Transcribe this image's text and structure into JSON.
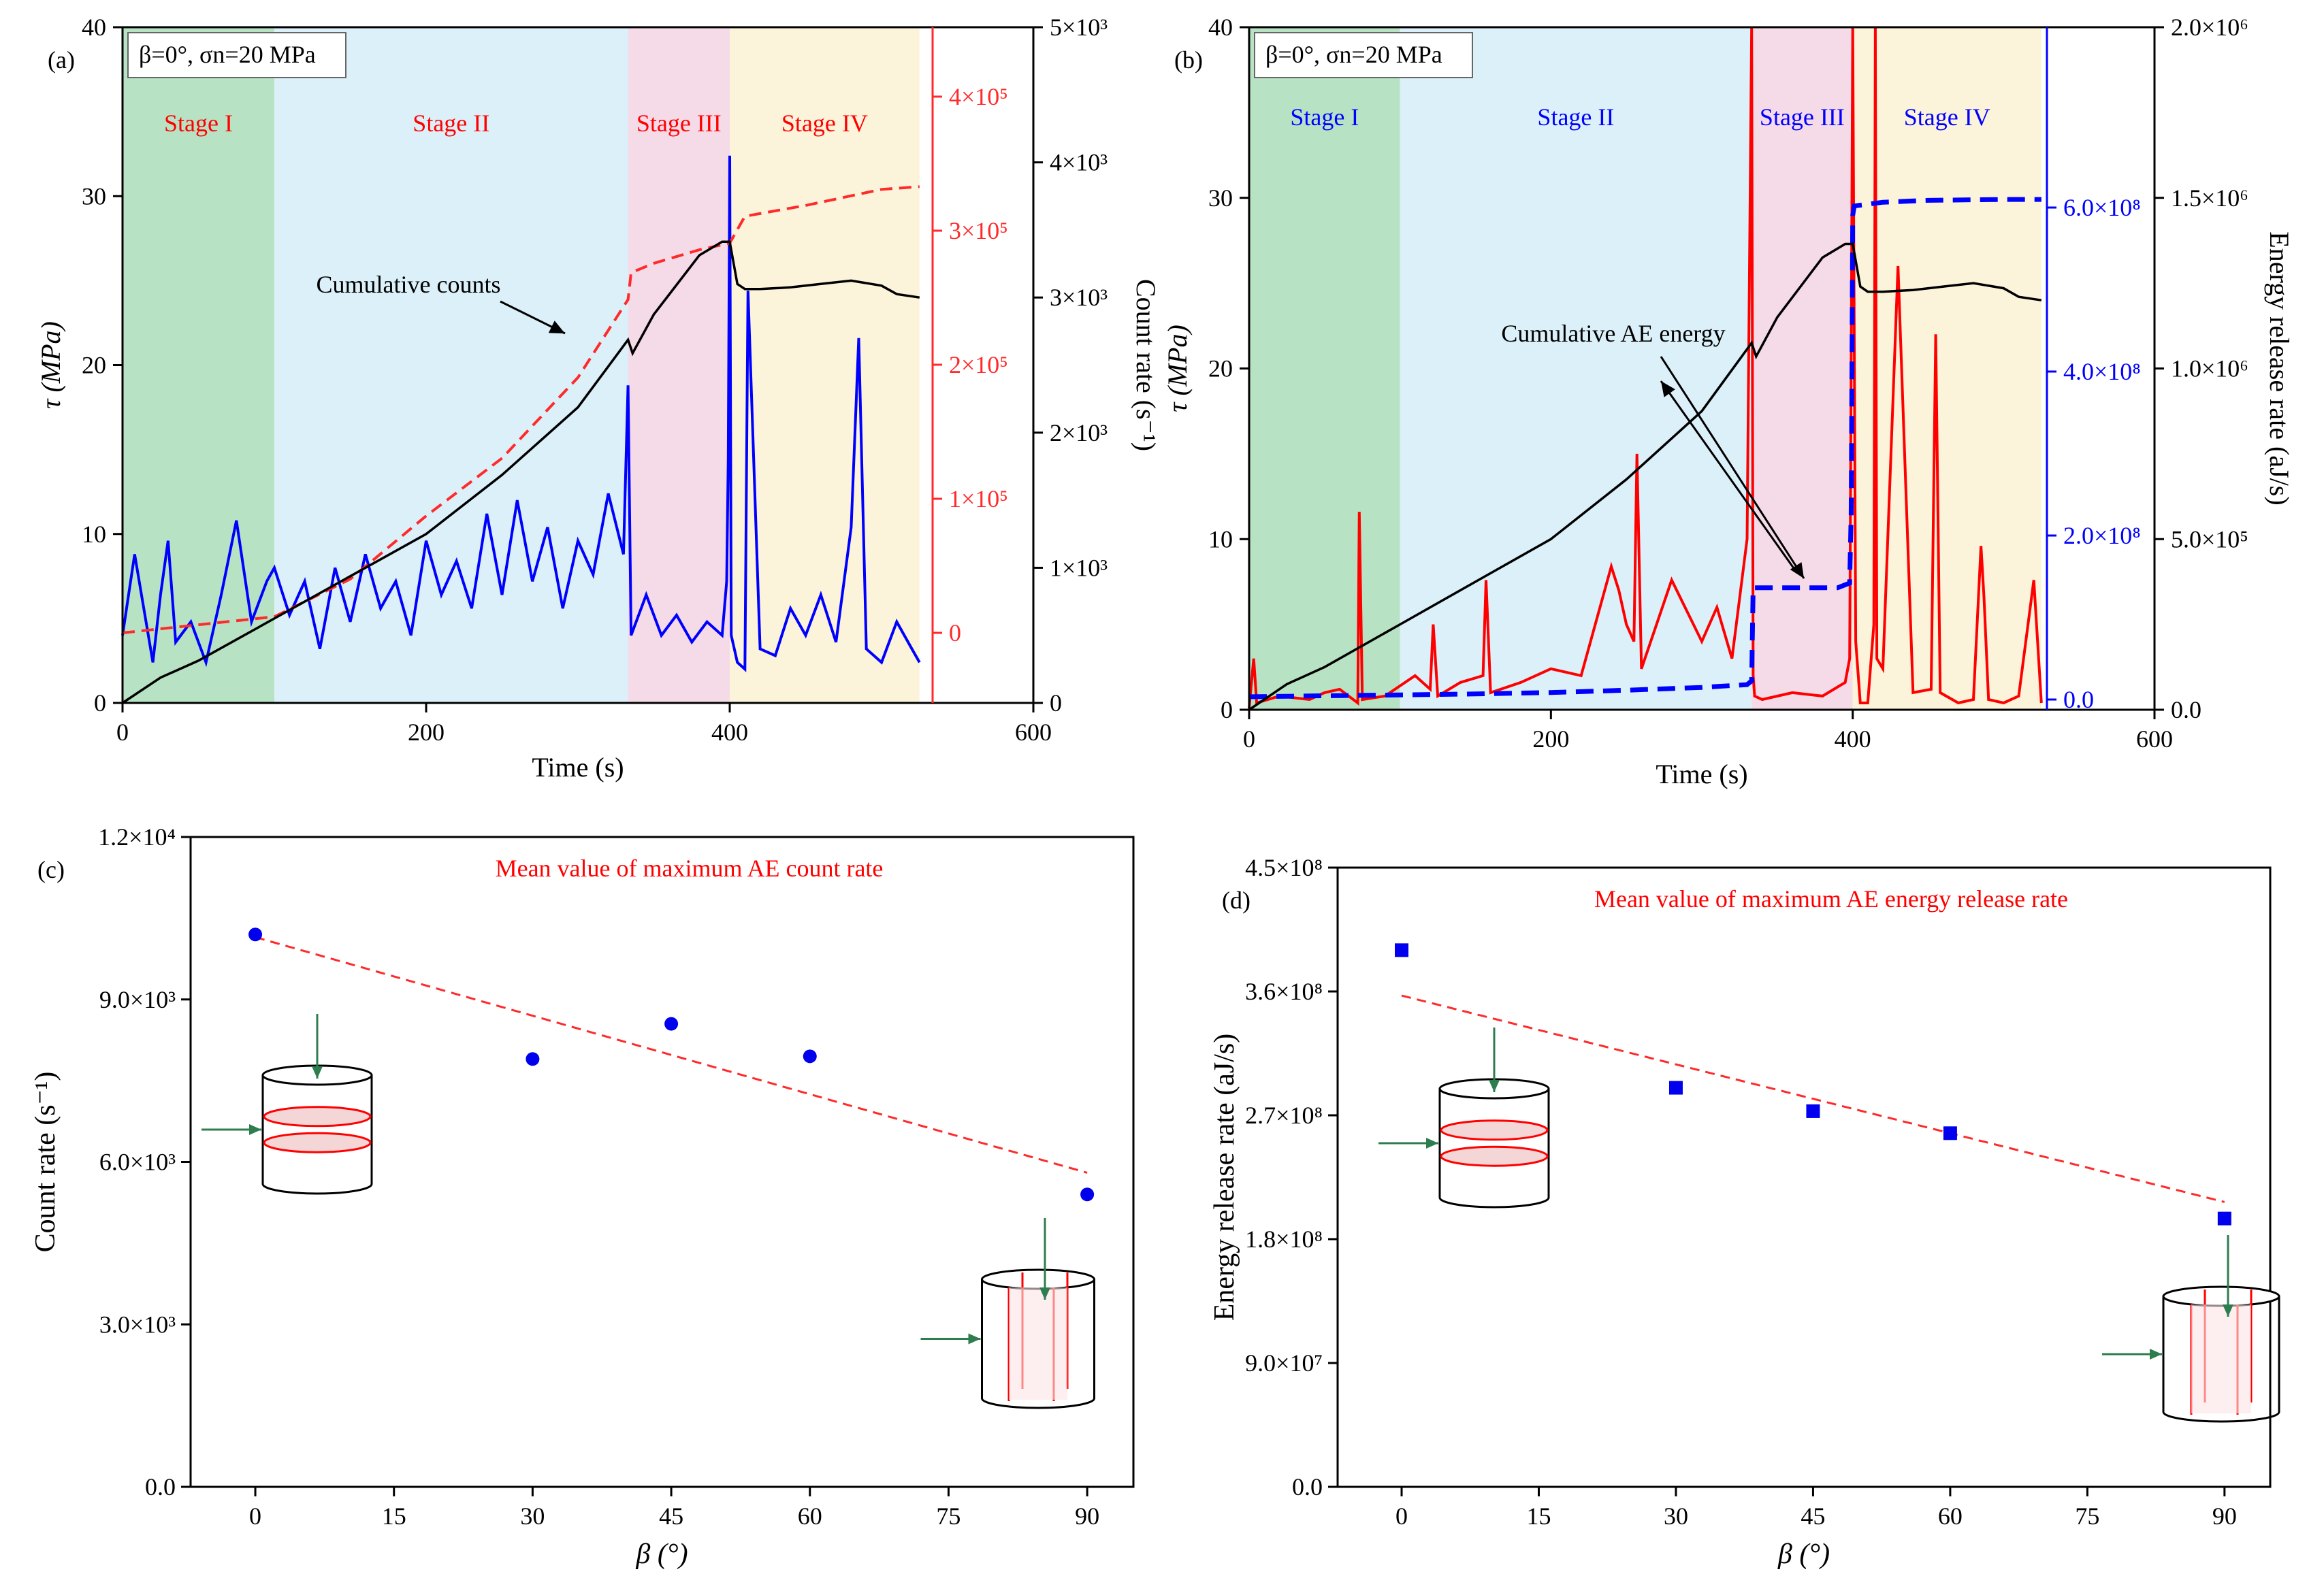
{
  "colors": {
    "stage1": "#b7e3c4",
    "stage2": "#dcf0f9",
    "stage3": "#f5dbe8",
    "stage4": "#fbf3da",
    "black": "#000000",
    "red": "#ff0000",
    "blue": "#0000ff",
    "dashred": "#ff2a2a",
    "marker_blue": "#0000ee",
    "arrow_green": "#2e7d4f"
  },
  "chart_data": [
    {
      "id": "a",
      "type": "line",
      "panel_label": "(a)",
      "condition": "β=0°, σn=20 MPa",
      "xlabel": "Time (s)",
      "ylabel": "τ (MPa)",
      "y2label": "Cumulative counts",
      "y3label": "Count rate (s⁻¹)",
      "xlim": [
        0,
        600
      ],
      "ylim": [
        0,
        40
      ],
      "xticks": [
        "0",
        "200",
        "400",
        "600"
      ],
      "yticks": [
        "0",
        "10",
        "20",
        "30",
        "40"
      ],
      "y2_ticks": [
        "0",
        "1×10⁵",
        "2×10⁵",
        "3×10⁵",
        "4×10⁵"
      ],
      "y3_ticks": [
        "0",
        "1×10³",
        "2×10³",
        "3×10³",
        "4×10³",
        "5×10³"
      ],
      "stages": [
        {
          "label": "Stage I",
          "x0": 0,
          "x1": 100
        },
        {
          "label": "Stage II",
          "x0": 100,
          "x1": 333
        },
        {
          "label": "Stage III",
          "x0": 333,
          "x1": 400
        },
        {
          "label": "Stage IV",
          "x0": 400,
          "x1": 525
        }
      ],
      "annotation": "Cumulative counts",
      "series": [
        {
          "name": "τ (MPa)",
          "x": [
            0,
            25,
            50,
            100,
            150,
            200,
            250,
            300,
            333,
            336,
            350,
            380,
            395,
            400,
            405,
            410,
            420,
            440,
            460,
            480,
            500,
            510,
            525
          ],
          "y": [
            0,
            1.5,
            2.5,
            5,
            7.5,
            10,
            13.5,
            17.5,
            21.5,
            20.7,
            23,
            26.5,
            27.3,
            27.3,
            24.8,
            24.5,
            24.5,
            24.6,
            24.8,
            25,
            24.7,
            24.2,
            24
          ]
        },
        {
          "name": "Cumulative counts",
          "x": [
            0,
            25,
            50,
            75,
            100,
            150,
            200,
            250,
            300,
            333,
            335,
            350,
            380,
            400,
            410,
            450,
            500,
            525
          ],
          "y": [
            0,
            3000,
            6000,
            9000,
            12000,
            40000,
            87000,
            130000,
            190000,
            248000,
            268000,
            275000,
            285000,
            290000,
            310000,
            318000,
            330000,
            332000
          ]
        },
        {
          "name": "Count rate",
          "x": [
            0,
            8,
            20,
            25,
            30,
            35,
            45,
            55,
            65,
            75,
            85,
            95,
            100,
            110,
            120,
            130,
            140,
            150,
            160,
            170,
            180,
            190,
            200,
            210,
            220,
            230,
            240,
            250,
            260,
            270,
            280,
            290,
            300,
            310,
            320,
            330,
            333,
            335,
            345,
            355,
            365,
            375,
            385,
            395,
            398,
            399,
            400,
            401,
            405,
            410,
            412,
            420,
            430,
            440,
            450,
            460,
            470,
            480,
            485,
            490,
            500,
            510,
            520,
            525
          ],
          "y": [
            500,
            1100,
            300,
            800,
            1200,
            450,
            600,
            300,
            800,
            1350,
            600,
            900,
            1000,
            650,
            900,
            400,
            1000,
            600,
            1100,
            700,
            900,
            500,
            1200,
            800,
            1050,
            700,
            1400,
            800,
            1500,
            900,
            1300,
            700,
            1200,
            950,
            1550,
            1100,
            2350,
            500,
            800,
            500,
            650,
            450,
            600,
            500,
            900,
            1800,
            4050,
            500,
            300,
            250,
            3050,
            400,
            350,
            700,
            500,
            800,
            450,
            1300,
            2700,
            400,
            300,
            600,
            400,
            300
          ]
        }
      ]
    },
    {
      "id": "b",
      "type": "line",
      "panel_label": "(b)",
      "condition": "β=0°, σn=20 MPa",
      "xlabel": "Time (s)",
      "ylabel": "τ (MPa)",
      "y2label": "Cumulative AE energy",
      "y3label": "Energy release rate (aJ/s)",
      "xlim": [
        0,
        600
      ],
      "ylim": [
        0,
        40
      ],
      "xticks": [
        "0",
        "200",
        "400",
        "600"
      ],
      "yticks": [
        "0",
        "10",
        "20",
        "30",
        "40"
      ],
      "y2_ticks": [
        "0.0",
        "2.0×10⁸",
        "4.0×10⁸",
        "6.0×10⁸"
      ],
      "y3_ticks": [
        "0.0",
        "5.0×10⁵",
        "1.0×10⁶",
        "1.5×10⁶",
        "2.0×10⁶"
      ],
      "stages": [
        {
          "label": "Stage I",
          "x0": 0,
          "x1": 100
        },
        {
          "label": "Stage II",
          "x0": 100,
          "x1": 333
        },
        {
          "label": "Stage III",
          "x0": 333,
          "x1": 400
        },
        {
          "label": "Stage IV",
          "x0": 400,
          "x1": 525
        }
      ],
      "annotation": "Cumulative AE energy",
      "series": [
        {
          "name": "τ (MPa)",
          "x": [
            0,
            25,
            50,
            100,
            150,
            200,
            250,
            300,
            333,
            336,
            350,
            380,
            395,
            400,
            405,
            410,
            420,
            440,
            460,
            480,
            500,
            510,
            525
          ],
          "y": [
            0,
            1.5,
            2.5,
            5,
            7.5,
            10,
            13.5,
            17.5,
            21.5,
            20.7,
            23,
            26.5,
            27.3,
            27.3,
            24.8,
            24.5,
            24.5,
            24.6,
            24.8,
            25,
            24.7,
            24.2,
            24
          ]
        },
        {
          "name": "Cumulative AE energy",
          "x": [
            0,
            50,
            100,
            150,
            200,
            250,
            300,
            330,
            333,
            334,
            380,
            390,
            398,
            399,
            400,
            401,
            420,
            450,
            500,
            525
          ],
          "y": [
            3000000,
            4000000,
            5000000,
            6000000,
            7500000,
            10000000,
            13000000,
            16000000,
            20000000,
            120000000,
            120000000,
            120000000,
            125000000,
            200000000,
            520000000,
            530000000,
            534000000,
            536000000,
            537000000,
            537000000
          ]
        },
        {
          "name": "Energy release rate",
          "x": [
            0,
            3,
            5,
            20,
            40,
            50,
            60,
            72,
            73,
            75,
            90,
            110,
            120,
            122,
            125,
            140,
            155,
            157,
            160,
            180,
            200,
            220,
            240,
            245,
            250,
            255,
            257,
            260,
            280,
            300,
            310,
            320,
            330,
            333,
            334,
            335,
            340,
            360,
            380,
            395,
            398,
            399,
            400,
            402,
            405,
            410,
            414,
            415,
            416,
            420,
            430,
            440,
            452,
            455,
            458,
            470,
            480,
            485,
            487,
            490,
            500,
            510,
            520,
            525
          ],
          "y": [
            5000,
            150000,
            20000,
            40000,
            30000,
            50000,
            60000,
            20000,
            580000,
            30000,
            40000,
            100000,
            60000,
            250000,
            40000,
            80000,
            100000,
            380000,
            50000,
            80000,
            120000,
            100000,
            420000,
            350000,
            250000,
            200000,
            750000,
            120000,
            380000,
            200000,
            300000,
            150000,
            500000,
            2000000,
            100000,
            40000,
            30000,
            50000,
            40000,
            80000,
            150000,
            1000000,
            2000000,
            200000,
            20000,
            20000,
            250000,
            2000000,
            150000,
            120000,
            1300000,
            50000,
            60000,
            1100000,
            50000,
            20000,
            30000,
            480000,
            330000,
            30000,
            20000,
            40000,
            380000,
            20000
          ]
        }
      ]
    },
    {
      "id": "c",
      "type": "scatter",
      "panel_label": "(c)",
      "title": "Mean value of  maximum AE count rate",
      "xlabel": "β (°)",
      "ylabel": "Count rate (s⁻¹)",
      "xlim": [
        -7,
        95
      ],
      "ylim": [
        0,
        12000
      ],
      "xticks": [
        "0",
        "15",
        "30",
        "45",
        "60",
        "75",
        "90"
      ],
      "yticks": [
        "0.0",
        "3.0×10³",
        "6.0×10³",
        "9.0×10³",
        "1.2×10⁴"
      ],
      "x": [
        0,
        30,
        45,
        60,
        90
      ],
      "values": [
        10200,
        7900,
        8550,
        7950,
        5400
      ],
      "trend": {
        "x": [
          0,
          90
        ],
        "y": [
          10150,
          5800
        ]
      }
    },
    {
      "id": "d",
      "type": "scatter",
      "panel_label": "(d)",
      "title": "Mean value of  maximum AE energy release rate",
      "xlabel": "β (°)",
      "ylabel": "Energy release rate (aJ/s)",
      "xlim": [
        -7,
        95
      ],
      "ylim": [
        0,
        450000000
      ],
      "xticks": [
        "0",
        "15",
        "30",
        "45",
        "60",
        "75",
        "90"
      ],
      "yticks": [
        "0.0",
        "9.0×10⁷",
        "1.8×10⁸",
        "2.7×10⁸",
        "3.6×10⁸",
        "4.5×10⁸"
      ],
      "x": [
        0,
        30,
        45,
        60,
        90
      ],
      "values": [
        390000000,
        290000000,
        273000000,
        257000000,
        195000000
      ],
      "trend": {
        "x": [
          0,
          90
        ],
        "y": [
          357000000,
          207000000
        ]
      }
    }
  ]
}
